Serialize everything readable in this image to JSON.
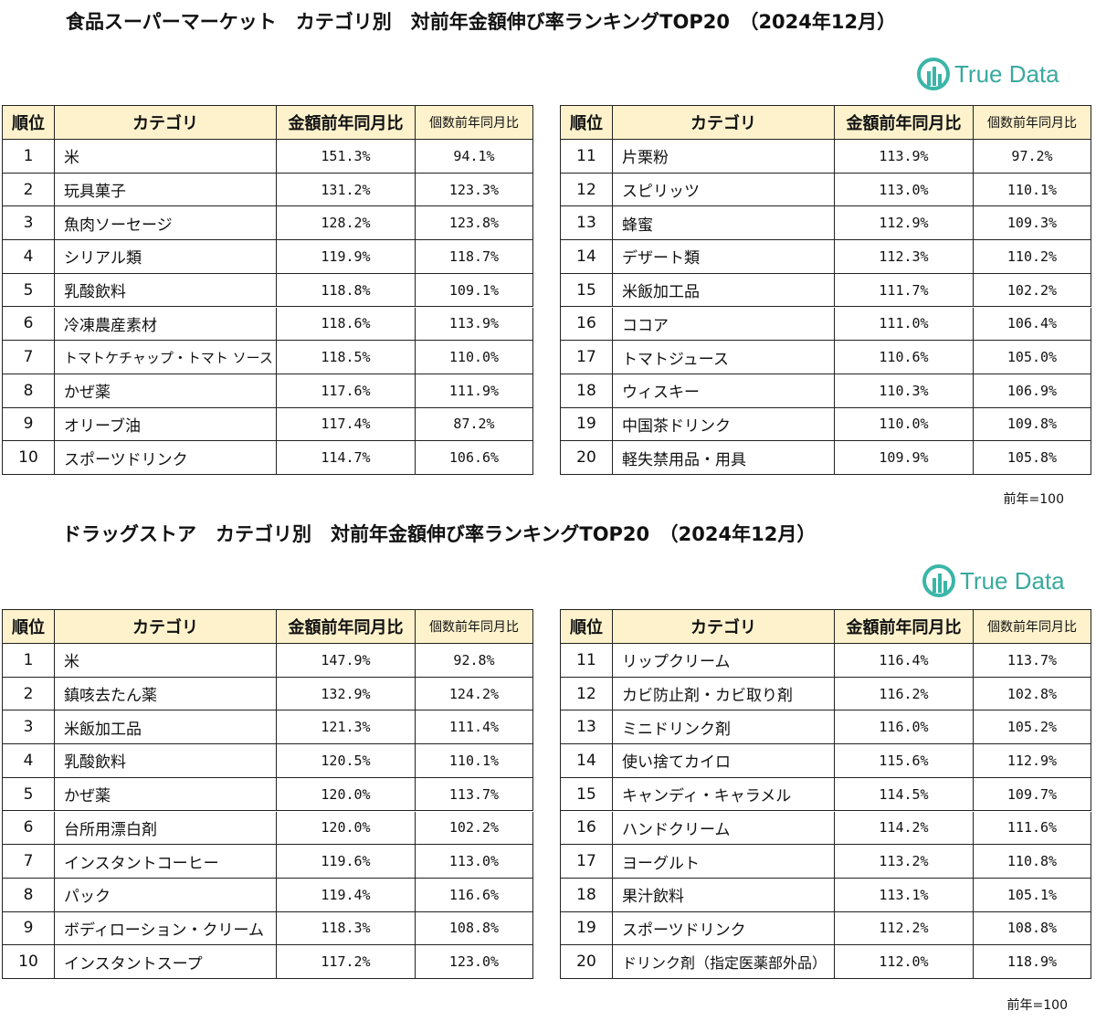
{
  "sections": [
    {
      "title": "食品スーパーマーケット　カテゴリ別　対前年金額伸び率ランキングTOP20　（2024年12月）",
      "logo": "True Data",
      "note": "前年=100",
      "tables": [
        {
          "header": [
            "順位",
            "カテゴリ",
            "金額前年同月比",
            "個数前年同月比"
          ],
          "rows": [
            [
              "1",
              "米",
              "151.3%",
              "94.1%"
            ],
            [
              "2",
              "玩具菓子",
              "131.2%",
              "123.3%"
            ],
            [
              "3",
              "魚肉ソーセージ",
              "128.2%",
              "123.8%"
            ],
            [
              "4",
              "シリアル類",
              "119.9%",
              "118.7%"
            ],
            [
              "5",
              "乳酸飲料",
              "118.8%",
              "109.1%"
            ],
            [
              "6",
              "冷凍農産素材",
              "118.6%",
              "113.9%"
            ],
            [
              "7",
              "トマトケチャップ・トマト ソース",
              "118.5%",
              "110.0%"
            ],
            [
              "8",
              "かぜ薬",
              "117.6%",
              "111.9%"
            ],
            [
              "9",
              "オリーブ油",
              "117.4%",
              "87.2%"
            ],
            [
              "10",
              "スポーツドリンク",
              "114.7%",
              "106.6%"
            ]
          ]
        },
        {
          "header": [
            "順位",
            "カテゴリ",
            "金額前年同月比",
            "個数前年同月比"
          ],
          "rows": [
            [
              "11",
              "片栗粉",
              "113.9%",
              "97.2%"
            ],
            [
              "12",
              "スピリッツ",
              "113.0%",
              "110.1%"
            ],
            [
              "13",
              "蜂蜜",
              "112.9%",
              "109.3%"
            ],
            [
              "14",
              "デザート類",
              "112.3%",
              "110.2%"
            ],
            [
              "15",
              "米飯加工品",
              "111.7%",
              "102.2%"
            ],
            [
              "16",
              "ココア",
              "111.0%",
              "106.4%"
            ],
            [
              "17",
              "トマトジュース",
              "110.6%",
              "105.0%"
            ],
            [
              "18",
              "ウィスキー",
              "110.3%",
              "106.9%"
            ],
            [
              "19",
              "中国茶ドリンク",
              "110.0%",
              "109.8%"
            ],
            [
              "20",
              "軽失禁用品・用具",
              "109.9%",
              "105.8%"
            ]
          ]
        }
      ]
    },
    {
      "title": "ドラッグストア　カテゴリ別　対前年金額伸び率ランキングTOP20　（2024年12月）",
      "logo": "True Data",
      "note": "前年=100",
      "tables": [
        {
          "header": [
            "順位",
            "カテゴリ",
            "金額前年同月比",
            "個数前年同月比"
          ],
          "rows": [
            [
              "1",
              "米",
              "147.9%",
              "92.8%"
            ],
            [
              "2",
              "鎮咳去たん薬",
              "132.9%",
              "124.2%"
            ],
            [
              "3",
              "米飯加工品",
              "121.3%",
              "111.4%"
            ],
            [
              "4",
              "乳酸飲料",
              "120.5%",
              "110.1%"
            ],
            [
              "5",
              "かぜ薬",
              "120.0%",
              "113.7%"
            ],
            [
              "6",
              "台所用漂白剤",
              "120.0%",
              "102.2%"
            ],
            [
              "7",
              "インスタントコーヒー",
              "119.6%",
              "113.0%"
            ],
            [
              "8",
              "パック",
              "119.4%",
              "116.6%"
            ],
            [
              "9",
              "ボディローション・クリーム",
              "118.3%",
              "108.8%"
            ],
            [
              "10",
              "インスタントスープ",
              "117.2%",
              "123.0%"
            ]
          ]
        },
        {
          "header": [
            "順位",
            "カテゴリ",
            "金額前年同月比",
            "個数前年同月比"
          ],
          "rows": [
            [
              "11",
              "リップクリーム",
              "116.4%",
              "113.7%"
            ],
            [
              "12",
              "カビ防止剤・カビ取り剤",
              "116.2%",
              "102.8%"
            ],
            [
              "13",
              "ミニドリンク剤",
              "116.0%",
              "105.2%"
            ],
            [
              "14",
              "使い捨てカイロ",
              "115.6%",
              "112.9%"
            ],
            [
              "15",
              "キャンディ・キャラメル",
              "114.5%",
              "109.7%"
            ],
            [
              "16",
              "ハンドクリーム",
              "114.2%",
              "111.6%"
            ],
            [
              "17",
              "ヨーグルト",
              "113.2%",
              "110.8%"
            ],
            [
              "18",
              "果汁飲料",
              "113.1%",
              "105.1%"
            ],
            [
              "19",
              "スポーツドリンク",
              "112.2%",
              "108.8%"
            ],
            [
              "20",
              "ドリンク剤（指定医薬部外品）",
              "112.0%",
              "118.9%"
            ]
          ]
        }
      ]
    }
  ]
}
